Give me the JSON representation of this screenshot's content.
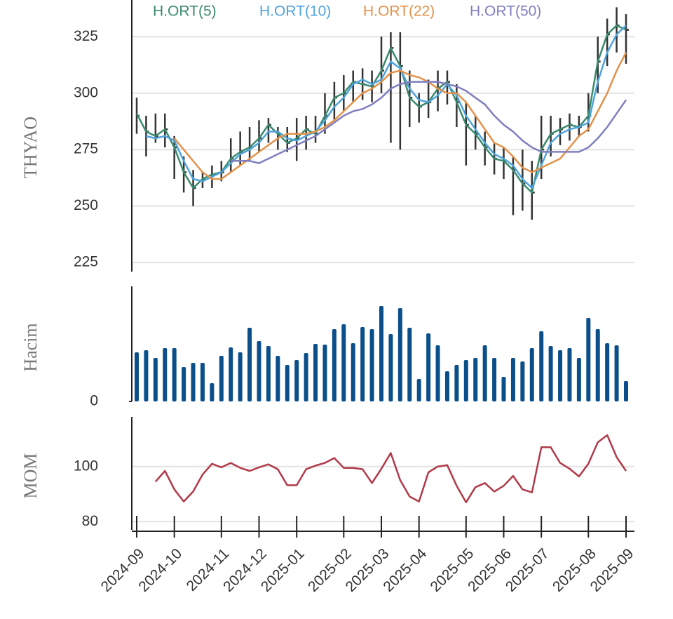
{
  "chart_data": [
    {
      "type": "ohlc",
      "ylabel": "THYAO",
      "color": "#333333",
      "high": [
        298,
        290,
        291,
        291,
        281,
        272,
        266,
        265,
        268,
        270,
        280,
        283,
        285,
        288,
        289,
        285,
        285,
        289,
        290,
        290,
        300,
        305,
        308,
        310,
        311,
        310,
        325,
        327,
        327,
        310,
        300,
        306,
        310,
        310,
        304,
        296,
        290,
        283,
        278,
        276,
        272,
        275,
        270,
        290,
        290,
        289,
        291,
        290,
        300,
        325,
        333,
        338,
        335
      ],
      "low": [
        282,
        272,
        278,
        276,
        262,
        256,
        250,
        258,
        258,
        261,
        265,
        268,
        270,
        274,
        278,
        275,
        274,
        270,
        275,
        278,
        282,
        288,
        292,
        296,
        297,
        296,
        300,
        278,
        275,
        285,
        287,
        289,
        292,
        295,
        285,
        268,
        275,
        268,
        264,
        262,
        246,
        248,
        244,
        262,
        272,
        277,
        279,
        281,
        283,
        300,
        312,
        318,
        313
      ],
      "close": [
        290,
        283,
        281,
        284,
        276,
        265,
        258,
        262,
        264,
        265,
        271,
        274,
        276,
        280,
        286,
        282,
        278,
        280,
        284,
        282,
        290,
        298,
        300,
        305,
        304,
        303,
        310,
        320,
        312,
        298,
        294,
        296,
        302,
        305,
        296,
        286,
        282,
        276,
        271,
        270,
        266,
        260,
        256,
        275,
        282,
        284,
        286,
        285,
        290,
        314,
        326,
        330,
        328
      ],
      "series": [
        {
          "name": "H.ORT(5)",
          "color": "#3a8a6e",
          "values": [
            291,
            283,
            281,
            284,
            276,
            265,
            258,
            262,
            264,
            265,
            271,
            274,
            276,
            280,
            286,
            282,
            278,
            280,
            284,
            282,
            290,
            298,
            300,
            305,
            304,
            303,
            310,
            320,
            312,
            298,
            294,
            296,
            302,
            305,
            296,
            286,
            282,
            276,
            271,
            270,
            266,
            260,
            256,
            275,
            282,
            284,
            286,
            285,
            290,
            314,
            326,
            330,
            328
          ]
        },
        {
          "name": "H.ORT(10)",
          "color": "#4ea3dd",
          "values": [
            null,
            281,
            280,
            281,
            279,
            270,
            262,
            261,
            263,
            265,
            269,
            273,
            275,
            278,
            283,
            283,
            280,
            279,
            281,
            283,
            288,
            294,
            298,
            304,
            306,
            304,
            306,
            314,
            311,
            302,
            297,
            296,
            299,
            304,
            299,
            290,
            284,
            278,
            273,
            271,
            268,
            262,
            258,
            268,
            278,
            282,
            284,
            285,
            287,
            305,
            318,
            326,
            330
          ]
        },
        {
          "name": "H.ORT(22)",
          "color": "#e3924a",
          "values": [
            null,
            null,
            null,
            null,
            280,
            275,
            270,
            265,
            262,
            262,
            265,
            268,
            271,
            274,
            277,
            280,
            282,
            282,
            282,
            283,
            285,
            288,
            292,
            296,
            300,
            302,
            305,
            309,
            310,
            308,
            307,
            305,
            302,
            300,
            300,
            296,
            290,
            284,
            278,
            276,
            272,
            267,
            265,
            267,
            269,
            271,
            276,
            281,
            284,
            292,
            300,
            310,
            318
          ]
        },
        {
          "name": "H.ORT(50)",
          "color": "#7f7fc0",
          "values": [
            null,
            null,
            null,
            null,
            null,
            null,
            null,
            null,
            null,
            null,
            270,
            270,
            270,
            269,
            271,
            273,
            275,
            277,
            279,
            281,
            284,
            287,
            290,
            292,
            293,
            295,
            298,
            302,
            304,
            305,
            305,
            305,
            305,
            304,
            303,
            301,
            298,
            295,
            290,
            286,
            283,
            279,
            276,
            274,
            274,
            274,
            274,
            274,
            276,
            280,
            285,
            291,
            297
          ]
        }
      ],
      "ylim": [
        221,
        340
      ],
      "yticks": [
        225,
        250,
        275,
        300,
        325
      ],
      "grid": true
    },
    {
      "type": "bar",
      "ylabel": "Hacim",
      "color": "#0b4f8a",
      "values": [
        70,
        73,
        62,
        76,
        76,
        49,
        55,
        55,
        26,
        65,
        77,
        70,
        105,
        86,
        79,
        65,
        52,
        59,
        69,
        82,
        81,
        103,
        110,
        83,
        106,
        103,
        136,
        96,
        133,
        105,
        32,
        97,
        80,
        43,
        52,
        59,
        62,
        80,
        62,
        35,
        62,
        57,
        76,
        100,
        79,
        73,
        76,
        62,
        119,
        103,
        83,
        80,
        29
      ],
      "ylim": [
        0,
        160
      ],
      "yticks": [
        0
      ],
      "grid": false
    },
    {
      "type": "line",
      "ylabel": "MOM",
      "color": "#b03a4a",
      "categories": [
        "2024-09",
        null,
        null,
        null,
        "2024-10",
        null,
        null,
        null,
        null,
        "2024-11",
        null,
        null,
        null,
        "2024-12",
        null,
        null,
        null,
        "2025-01",
        null,
        null,
        null,
        null,
        "2025-02",
        null,
        null,
        null,
        "2025-03",
        null,
        null,
        null,
        "2025-04",
        null,
        null,
        null,
        null,
        "2025-05",
        null,
        null,
        null,
        "2025-06",
        null,
        null,
        null,
        "2025-07",
        null,
        null,
        null,
        null,
        "2025-08",
        null,
        null,
        null,
        "2025-09"
      ],
      "values": [
        null,
        null,
        94.5,
        98.4,
        91.7,
        87.3,
        90.9,
        97.1,
        101.0,
        99.7,
        101.3,
        99.5,
        98.4,
        99.7,
        100.8,
        99.0,
        93.2,
        93.2,
        99.0,
        100.3,
        101.3,
        103.1,
        99.5,
        99.5,
        99.0,
        94.0,
        99.2,
        104.9,
        95.1,
        89.1,
        87.3,
        97.9,
        100,
        100.5,
        93.0,
        87.0,
        92.5,
        94.0,
        90.9,
        93.0,
        96.6,
        91.7,
        90.6,
        107.0,
        107.0,
        101.3,
        99.2,
        96.4,
        101.0,
        108.8,
        111.4,
        103.4,
        98.4
      ],
      "ylim": [
        77,
        117
      ],
      "yticks": [
        80,
        100
      ],
      "grid": true
    }
  ]
}
